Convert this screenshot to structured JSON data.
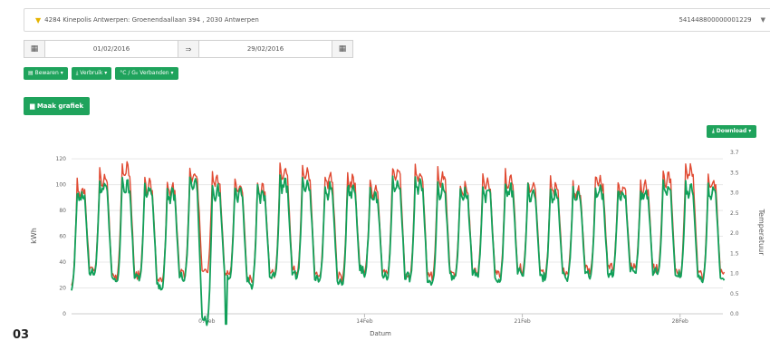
{
  "selector": {
    "address": "4284 Kinepolis Antwerpen: Groenendaallaan 394 , 2030 Antwerpen",
    "ean": "541448800000001229"
  },
  "daterange": {
    "from": "01/02/2016",
    "to": "29/02/2016",
    "arrow": "⇒"
  },
  "buttons": {
    "bewaren": "Bewaren ▾",
    "verbruik": "Verbruik ▾",
    "verbanden": "°C / G₀ Verbanden ▾",
    "main": "Maak grafiek",
    "download": "Download ▾"
  },
  "figure_label": "03",
  "colors": {
    "accent": "#1fa35c",
    "series_red": "#e04a32",
    "series_green": "#12a05a"
  },
  "chart_data": {
    "type": "line",
    "xlabel": "Datum",
    "ylabel": "kWh",
    "y2label": "Temperatuur",
    "ylim": [
      0,
      125
    ],
    "yticks": [
      0,
      20,
      40,
      60,
      80,
      100,
      120
    ],
    "y2ticks": [
      "0.0",
      "0.5",
      "1.0",
      "1.5",
      "2.0",
      "2.5",
      "3.0",
      "3.5",
      "3.7"
    ],
    "xrange_days": [
      1,
      29
    ],
    "xticks": [
      {
        "day": 7,
        "label": "07Feb"
      },
      {
        "day": 14,
        "label": "14Feb"
      },
      {
        "day": 21,
        "label": "21Feb"
      },
      {
        "day": 28,
        "label": "28Feb"
      }
    ],
    "grid": true,
    "series": [
      {
        "name": "",
        "color": "#e04a32",
        "daily_peak": [
          104,
          112,
          120,
          108,
          104,
          116,
          112,
          106,
          104,
          118,
          116,
          112,
          110,
          104,
          118,
          116,
          114,
          104,
          108,
          112,
          106,
          106,
          102,
          110,
          104,
          106,
          114,
          118,
          110
        ],
        "daily_min": [
          22,
          33,
          27,
          28,
          24,
          28,
          31,
          29,
          24,
          30,
          32,
          28,
          26,
          33,
          30,
          29,
          26,
          30,
          31,
          28,
          32,
          29,
          30,
          31,
          33,
          34,
          32,
          30,
          28
        ]
      },
      {
        "name": "",
        "color": "#12a05a",
        "daily_peak": [
          100,
          106,
          108,
          104,
          100,
          110,
          104,
          102,
          100,
          108,
          106,
          104,
          104,
          100,
          108,
          108,
          104,
          100,
          102,
          104,
          100,
          100,
          98,
          102,
          100,
          100,
          104,
          104,
          102
        ],
        "daily_min": [
          20,
          30,
          24,
          25,
          20,
          26,
          -8,
          26,
          21,
          27,
          28,
          25,
          22,
          30,
          27,
          26,
          23,
          27,
          28,
          25,
          29,
          26,
          27,
          28,
          30,
          31,
          29,
          27,
          25
        ]
      }
    ]
  }
}
